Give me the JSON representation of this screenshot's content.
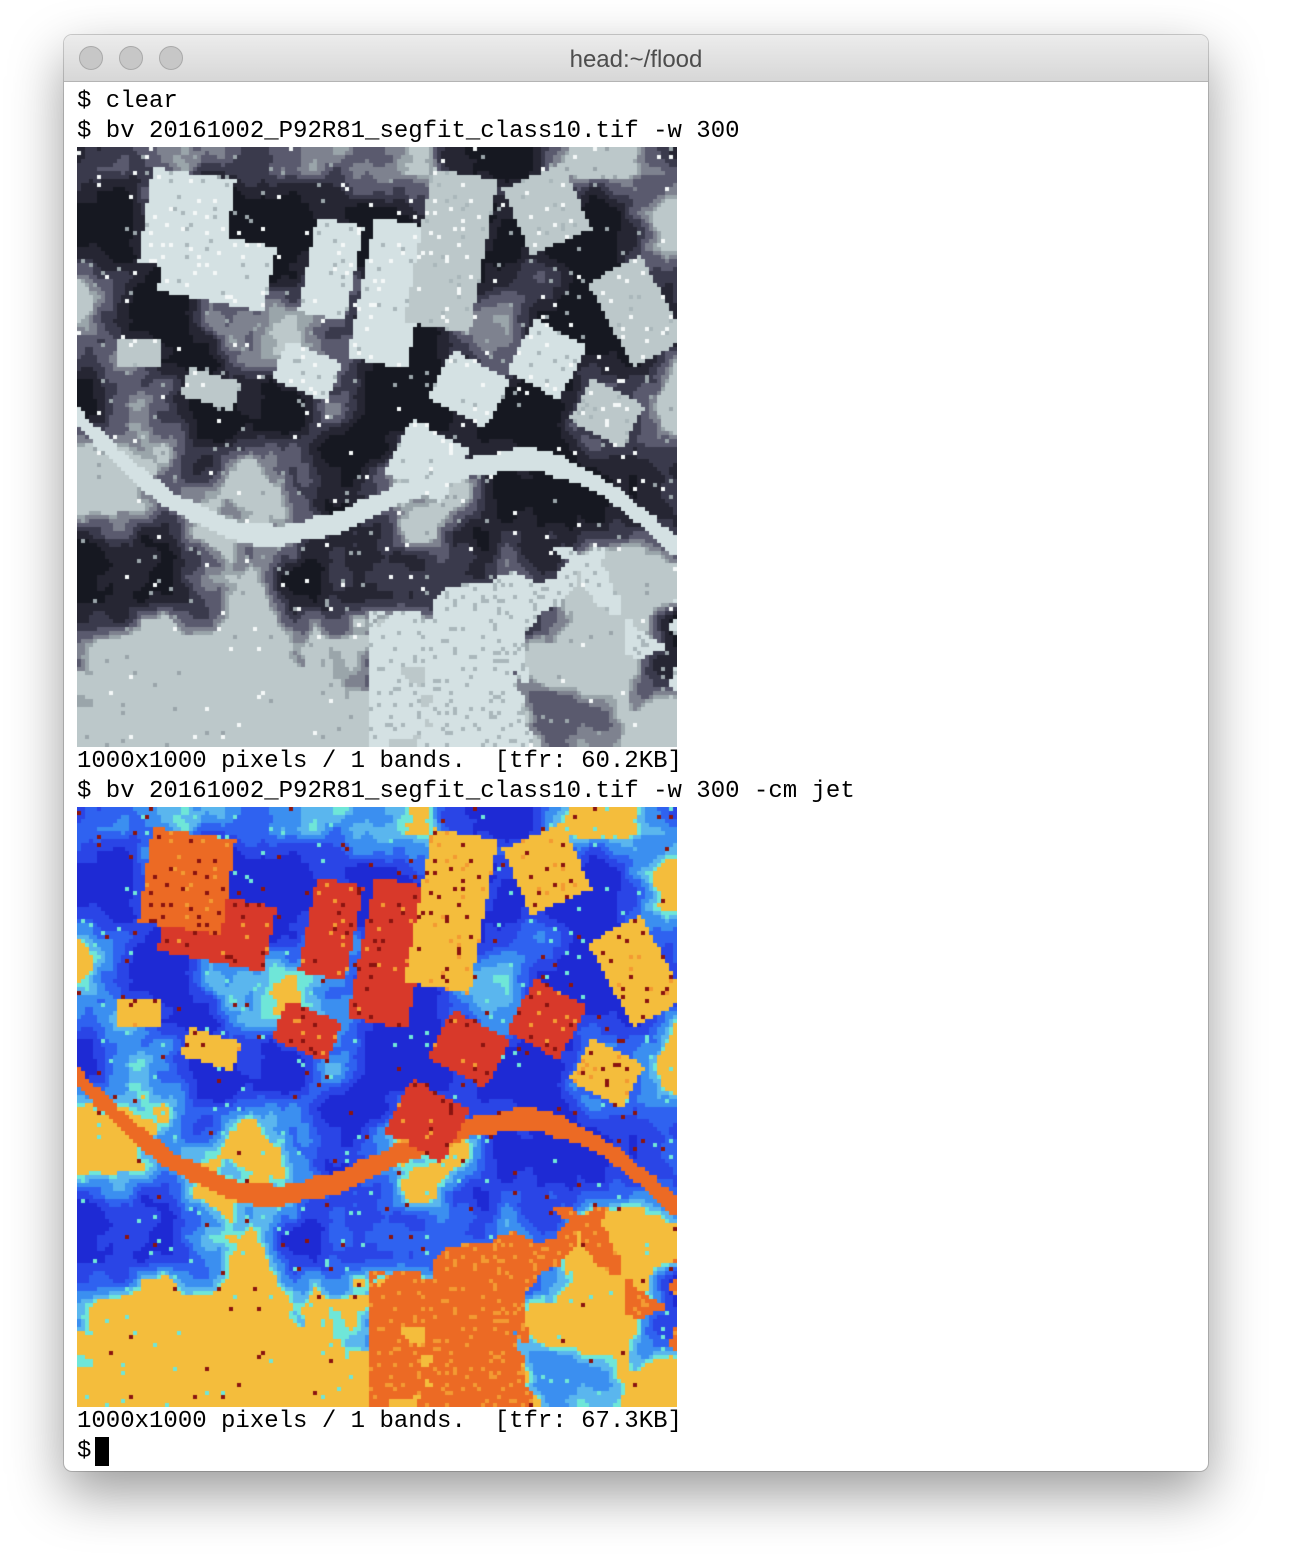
{
  "window": {
    "title": "head:~/flood"
  },
  "terminal": {
    "lines": {
      "l1": "$ clear",
      "l2": "$ bv 20161002_P92R81_segfit_class10.tif -w 300",
      "l3": "1000x1000 pixels / 1 bands.  [tfr: 60.2KB]",
      "l4": "$ bv 20161002_P92R81_segfit_class10.tif -w 300 -cm jet",
      "l5": "1000x1000 pixels / 1 bands.  [tfr: 67.3KB]",
      "prompt": "$"
    },
    "images": {
      "gray": {
        "colormap": "gray",
        "palette": [
          "#161821",
          "#262633",
          "#3a3a4c",
          "#5a5a6e",
          "#7e828f",
          "#9aa5aa",
          "#aab7bb",
          "#bcc8ca",
          "#d4e1e3",
          "#f4f8f8"
        ]
      },
      "jet": {
        "colormap": "jet",
        "palette": [
          "#1e2ad4",
          "#2a45e6",
          "#2f62f0",
          "#3b8ff0",
          "#5ab6ee",
          "#6fe6d8",
          "#f4bd3c",
          "#f39a32",
          "#ec6a24",
          "#d8392a",
          "#8a1410"
        ]
      }
    }
  }
}
